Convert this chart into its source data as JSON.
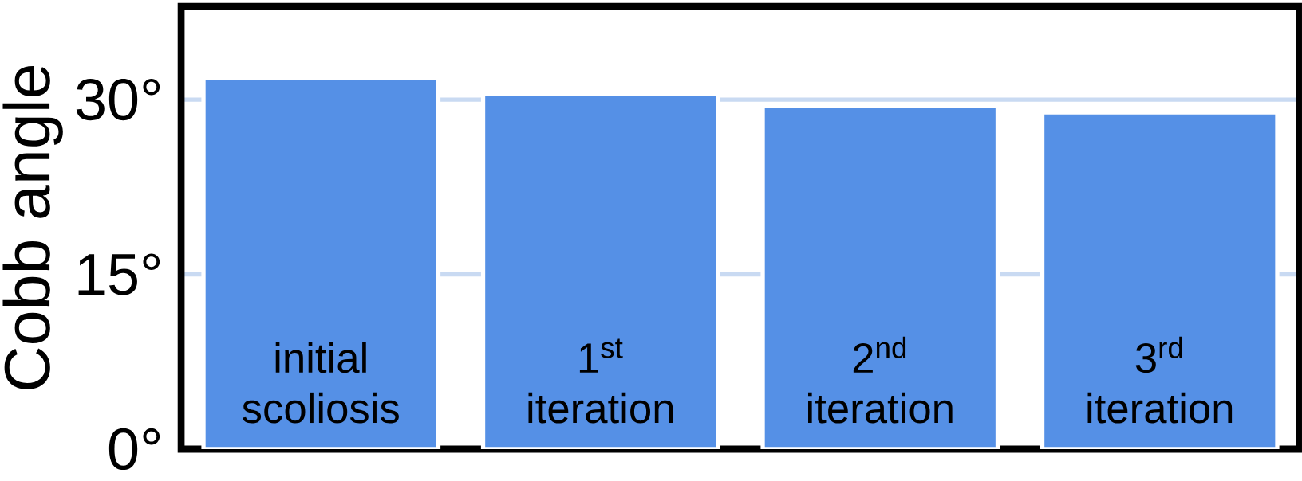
{
  "chart_data": {
    "type": "bar",
    "ylabel": "Cobb angle",
    "categories": [
      "initial scoliosis",
      "1$^{st}$ iteration",
      "2$^{nd}$ iteration",
      "3$^{rd}$ iteration"
    ],
    "values": [
      31.9,
      30.5,
      29.5,
      28.9
    ],
    "color": "#5590e6",
    "ylim": [
      0,
      38
    ],
    "yticks": [
      {
        "value": 0,
        "label": "0°"
      },
      {
        "value": 15,
        "label": "15°"
      },
      {
        "value": 30,
        "label": "30°"
      }
    ],
    "grid": "y"
  }
}
